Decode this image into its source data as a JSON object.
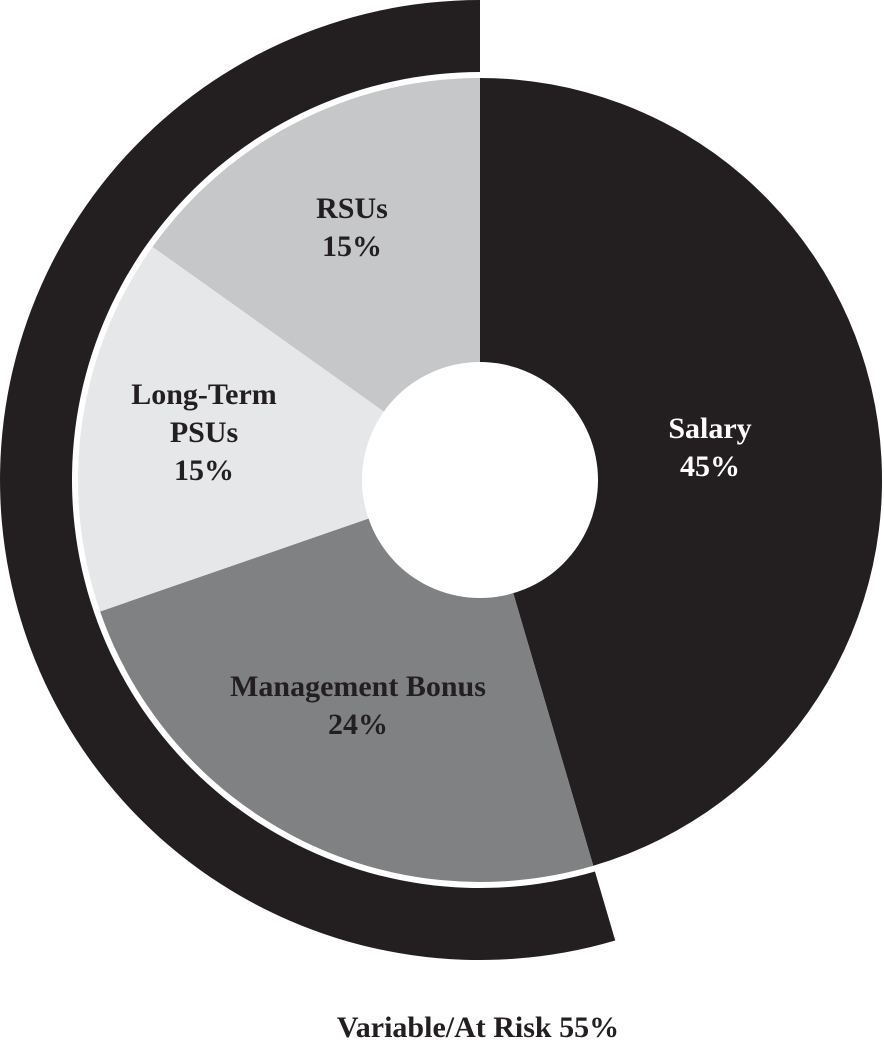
{
  "chart_data": {
    "type": "pie",
    "slices": [
      {
        "label_lines": [
          "Salary",
          "45%"
        ],
        "value": 45,
        "color": "#231f20",
        "text_color": "#ffffff"
      },
      {
        "label_lines": [
          "Management Bonus",
          "24%"
        ],
        "value": 24,
        "color": "#808183",
        "text_color": "#231f20"
      },
      {
        "label_lines": [
          "Long-Term",
          "PSUs",
          "15%"
        ],
        "value": 15,
        "color": "#e6e7e8",
        "text_color": "#231f20"
      },
      {
        "label_lines": [
          "RSUs",
          "15%"
        ],
        "value": 15,
        "color": "#c6c7c8",
        "text_color": "#231f20"
      }
    ],
    "outer_ring": {
      "label": "Variable/At Risk 55%",
      "value": 55,
      "color": "#231f20"
    },
    "donut_hole_color": "#ffffff"
  }
}
